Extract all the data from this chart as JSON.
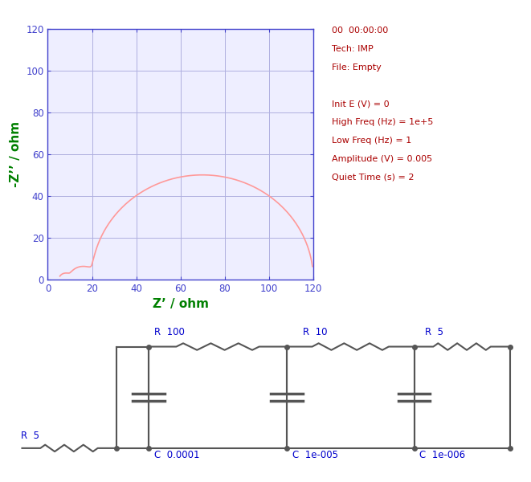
{
  "plot_bg": "#eeeeff",
  "fig_bg": "#ffffff",
  "grid_color": "#b0b0e0",
  "curve_color": "#ff9999",
  "axis_color": "#4040cc",
  "xlabel": "Z’ / ohm",
  "ylabel": "-Z’’ / ohm",
  "xlabel_color": "#008000",
  "ylabel_color": "#008000",
  "xlim": [
    0,
    120
  ],
  "ylim": [
    0,
    120
  ],
  "xticks": [
    0,
    20,
    40,
    60,
    80,
    100,
    120
  ],
  "yticks": [
    0,
    20,
    40,
    60,
    80,
    100,
    120
  ],
  "info_lines": [
    "00  00:00:00",
    "Tech: IMP",
    "File: Empty",
    "",
    "Init E (V) = 0",
    "High Freq (Hz) = 1e+5",
    "Low Freq (Hz) = 1",
    "Amplitude (V) = 0.005",
    "Quiet Time (s) = 2"
  ],
  "info_color": "#aa0000",
  "circuit_label_color": "#0000cc",
  "wire_color": "#555555",
  "resistor_R_series": "R  5",
  "resistor_R1": "R  100",
  "resistor_R2": "R  10",
  "resistor_R3": "R  5",
  "cap_C1": "C  0.0001",
  "cap_C2": "C  1e-005",
  "cap_C3": "C  1e-006"
}
